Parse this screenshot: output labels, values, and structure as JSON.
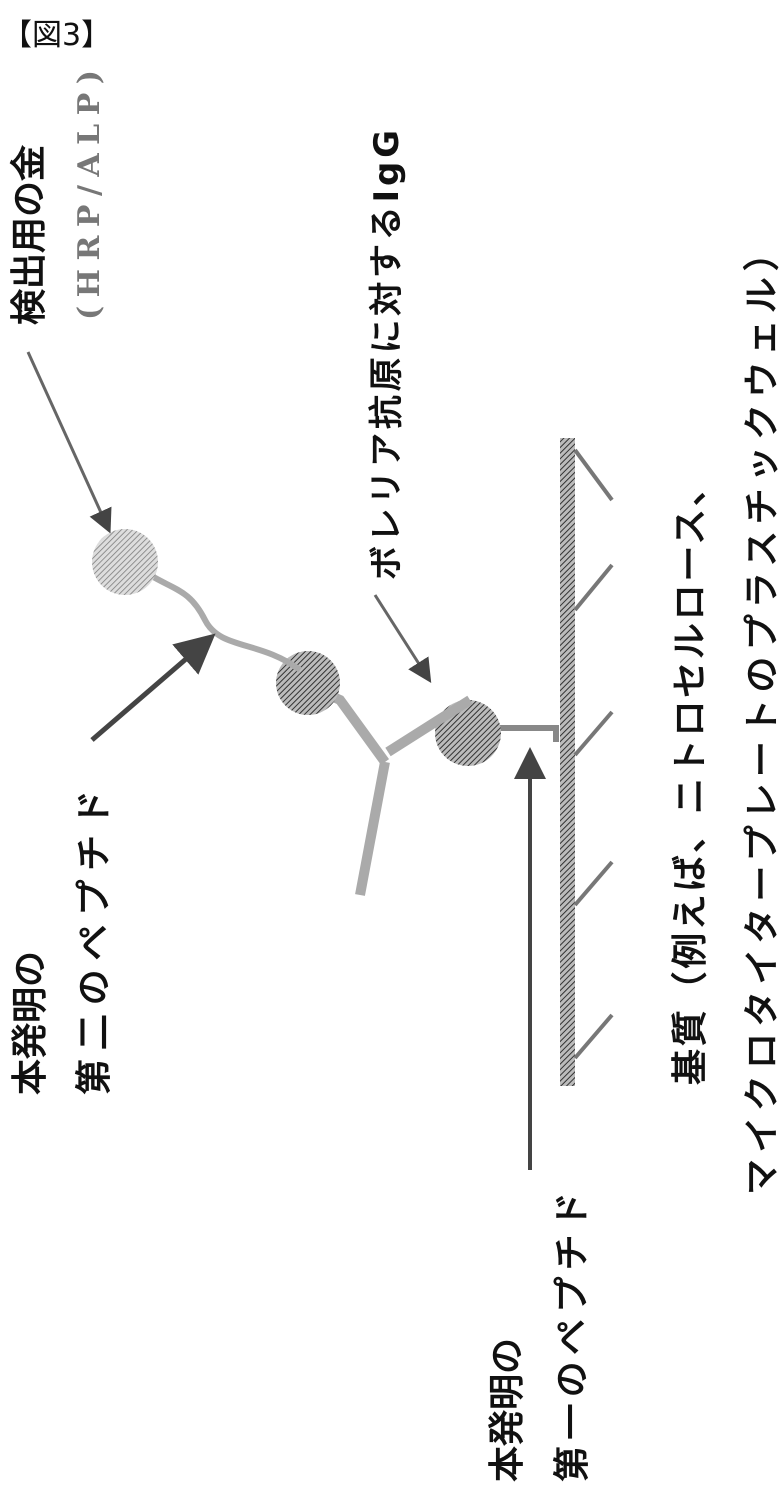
{
  "figure_label": "【図3】",
  "labels": {
    "detection_gold_line1": "検出用の金",
    "detection_gold_line2": "(HRP/ALP)",
    "igg": "ボレリア抗原に対するIgG",
    "second_peptide_line1": "本発明の",
    "second_peptide_line2": "第二のペプチド",
    "substrate_line1": "基質（例えば、ニトロセルロース、",
    "substrate_line2": "マイクロタイタープレートのプラスチックウェル）",
    "first_peptide_line1": "本発明の",
    "first_peptide_line2": "第一のペプチド"
  },
  "colors": {
    "ink": "#111111",
    "hatch_dark": "#555555",
    "hatch_light": "#999999"
  }
}
